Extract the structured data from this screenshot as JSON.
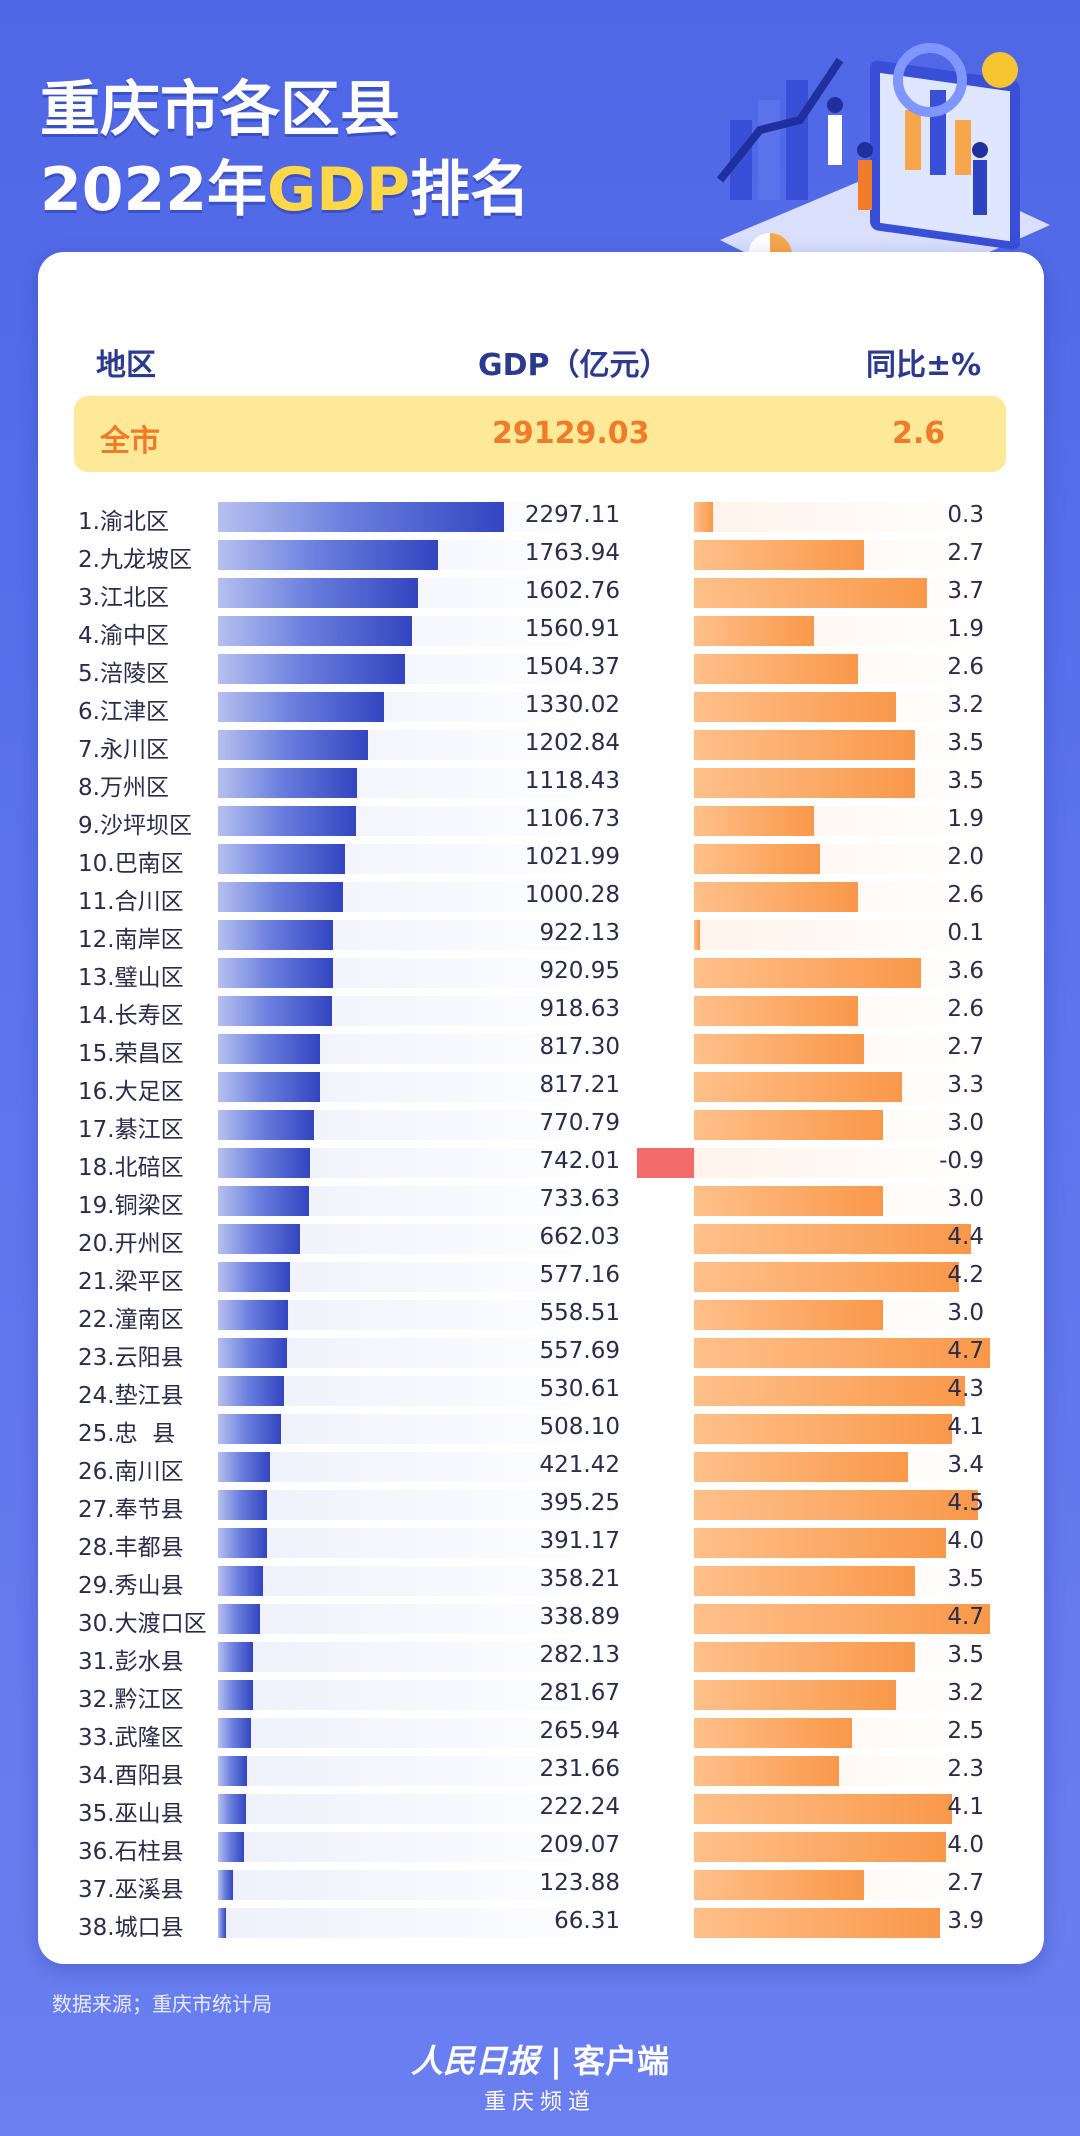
{
  "title": {
    "line1": "重庆市各区县",
    "line2_pre": "2022年",
    "line2_hl": "GDP",
    "line2_post": "排名"
  },
  "header": {
    "region": "地区",
    "gdp": "GDP（亿元）",
    "yoy": "同比±%"
  },
  "total": {
    "label": "全市",
    "gdp": "29129.03",
    "yoy": "2.6"
  },
  "colors": {
    "gdp_bar": "#3245c0",
    "yoy_bar": "#f9984a",
    "negative_bar": "#f26a6a",
    "highlight": "#fde998"
  },
  "chart_data": {
    "type": "bar",
    "categories": [
      "1.渝北区",
      "2.九龙坡区",
      "3.江北区",
      "4.渝中区",
      "5.涪陵区",
      "6.江津区",
      "7.永川区",
      "8.万州区",
      "9.沙坪坝区",
      "10.巴南区",
      "11.合川区",
      "12.南岸区",
      "13.璧山区",
      "14.长寿区",
      "15.荣昌区",
      "16.大足区",
      "17.綦江区",
      "18.北碚区",
      "19.铜梁区",
      "20.开州区",
      "21.梁平区",
      "22.潼南区",
      "23.云阳县",
      "24.垫江县",
      "25.忠  县",
      "26.南川区",
      "27.奉节县",
      "28.丰都县",
      "29.秀山县",
      "30.大渡口区",
      "31.彭水县",
      "32.黔江区",
      "33.武隆区",
      "34.酉阳县",
      "35.巫山县",
      "36.石柱县",
      "37.巫溪县",
      "38.城口县"
    ],
    "series": [
      {
        "name": "GDP（亿元）",
        "values": [
          2297.11,
          1763.94,
          1602.76,
          1560.91,
          1504.37,
          1330.02,
          1202.84,
          1118.43,
          1106.73,
          1021.99,
          1000.28,
          922.13,
          920.95,
          918.63,
          817.3,
          817.21,
          770.79,
          742.01,
          733.63,
          662.03,
          577.16,
          558.51,
          557.69,
          530.61,
          508.1,
          421.42,
          395.25,
          391.17,
          358.21,
          338.89,
          282.13,
          281.67,
          265.94,
          231.66,
          222.24,
          209.07,
          123.88,
          66.31
        ],
        "labels": [
          "2297.11",
          "1763.94",
          "1602.76",
          "1560.91",
          "1504.37",
          "1330.02",
          "1202.84",
          "1118.43",
          "1106.73",
          "1021.99",
          "1000.28",
          "922.13",
          "920.95",
          "918.63",
          "817.30",
          "817.21",
          "770.79",
          "742.01",
          "733.63",
          "662.03",
          "577.16",
          "558.51",
          "557.69",
          "530.61",
          "508.10",
          "421.42",
          "395.25",
          "391.17",
          "358.21",
          "338.89",
          "282.13",
          "281.67",
          "265.94",
          "231.66",
          "222.24",
          "209.07",
          "123.88",
          "66.31"
        ]
      },
      {
        "name": "同比±%",
        "values": [
          0.3,
          2.7,
          3.7,
          1.9,
          2.6,
          3.2,
          3.5,
          3.5,
          1.9,
          2.0,
          2.6,
          0.1,
          3.6,
          2.6,
          2.7,
          3.3,
          3.0,
          -0.9,
          3.0,
          4.4,
          4.2,
          3.0,
          4.7,
          4.3,
          4.1,
          3.4,
          4.5,
          4.0,
          3.5,
          4.7,
          3.5,
          3.2,
          2.5,
          2.3,
          4.1,
          4.0,
          2.7,
          3.9
        ],
        "labels": [
          "0.3",
          "2.7",
          "3.7",
          "1.9",
          "2.6",
          "3.2",
          "3.5",
          "3.5",
          "1.9",
          "2.0",
          "2.6",
          "0.1",
          "3.6",
          "2.6",
          "2.7",
          "3.3",
          "3.0",
          "-0.9",
          "3.0",
          "4.4",
          "4.2",
          "3.0",
          "4.7",
          "4.3",
          "4.1",
          "3.4",
          "4.5",
          "4.0",
          "3.5",
          "4.7",
          "3.5",
          "3.2",
          "2.5",
          "2.3",
          "4.1",
          "4.0",
          "2.7",
          "3.9"
        ]
      }
    ]
  },
  "footer": {
    "source": "数据来源；重庆市统计局",
    "brand_logo": "人民日报",
    "brand_text": "客户端",
    "channel": "重庆频道"
  }
}
